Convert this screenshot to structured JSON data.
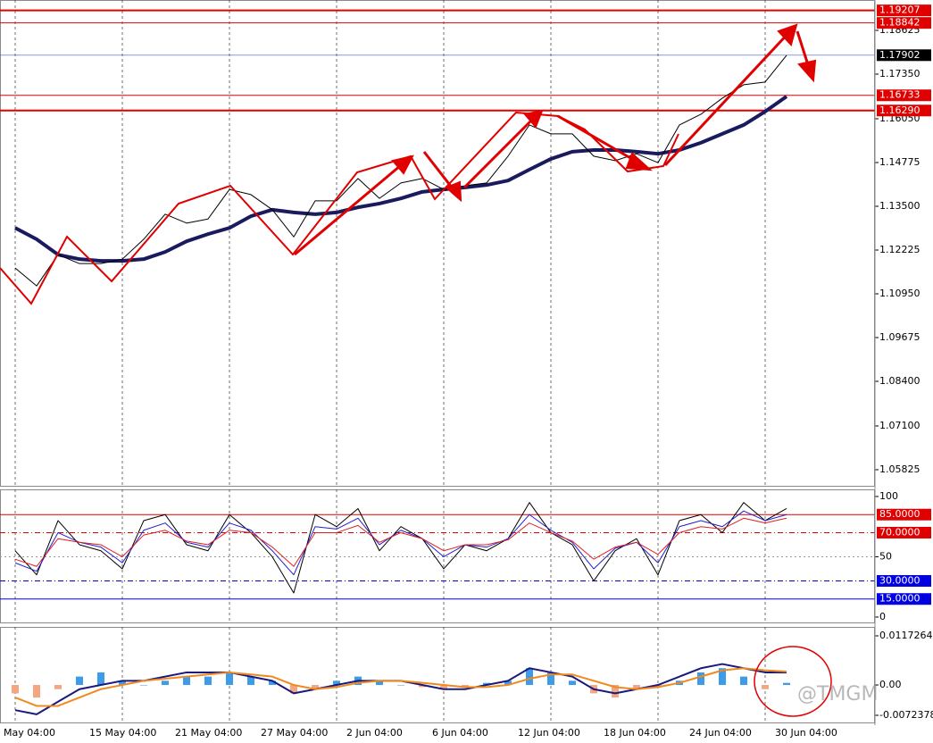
{
  "chart_data": [
    {
      "type": "line",
      "ylim": [
        1.0533,
        1.1951
      ],
      "yticks": [
        1.05825,
        {
          "value": 1.071,
          "label": "1.07100"
        },
        {
          "value": 1.084,
          "label": "1.08400"
        },
        1.09675,
        {
          "value": 1.1095,
          "label": "1.10950"
        },
        1.12225,
        {
          "value": 1.135,
          "label": "1.13500"
        },
        1.14775,
        {
          "value": 1.1605,
          "label": "1.16050"
        },
        {
          "value": 1.1735,
          "label": "1.17350"
        },
        1.18625
      ],
      "levels": [
        {
          "value": 1.19207,
          "color": "#e00000",
          "box_color": "#e00000",
          "width": 2,
          "style": "solid"
        },
        {
          "value": 1.18842,
          "color": "#e00000",
          "box_color": "#e00000",
          "width": 1,
          "style": "solid"
        },
        {
          "value": 1.17902,
          "color": "#4060d0",
          "box_color": "#000000",
          "width": 0.6,
          "style": "solid"
        },
        {
          "value": 1.16733,
          "color": "#e00000",
          "box_color": "#e00000",
          "width": 1,
          "style": "solid"
        },
        {
          "value": 1.1629,
          "label": "1.16290",
          "color": "#e00000",
          "box_color": "#e00000",
          "width": 2,
          "style": "solid"
        }
      ],
      "series": [
        {
          "type": "line",
          "color": "#1a1a5e",
          "width": 4,
          "values": [
            1.1287,
            1.1254,
            1.1209,
            1.1196,
            1.1191,
            1.1191,
            1.1196,
            1.1217,
            1.1248,
            1.1269,
            1.1287,
            1.1321,
            1.134,
            1.1332,
            1.1327,
            1.1332,
            1.1347,
            1.1358,
            1.1373,
            1.1392,
            1.1399,
            1.1405,
            1.1412,
            1.1425,
            1.1457,
            1.1488,
            1.1509,
            1.1514,
            1.1514,
            1.1509,
            1.1503,
            1.1514,
            1.1535,
            1.1561,
            1.1587,
            1.1626,
            1.167
          ]
        },
        {
          "type": "line",
          "color": "#000000",
          "width": 1,
          "values": [
            1.117,
            1.1118,
            1.1209,
            1.1183,
            1.1183,
            1.1196,
            1.1254,
            1.1327,
            1.1301,
            1.1313,
            1.1399,
            1.1384,
            1.134,
            1.1261,
            1.1366,
            1.1366,
            1.1431,
            1.1373,
            1.1418,
            1.1431,
            1.1399,
            1.141,
            1.1418,
            1.1496,
            1.1587,
            1.1561,
            1.1561,
            1.1496,
            1.1483,
            1.1503,
            1.1477,
            1.1587,
            1.1618,
            1.1665,
            1.1704,
            1.1712,
            1.179
          ]
        }
      ]
    },
    {
      "type": "line",
      "ylim": [
        -5.2,
        105.9
      ],
      "yticks": [
        100,
        50,
        0
      ],
      "levels": [
        {
          "value": 85,
          "label": "85.0000",
          "color": "#e00000",
          "box_color": "#e00000",
          "width": 1,
          "style": "solid"
        },
        {
          "value": 70,
          "label": "70.0000",
          "color": "#e00000",
          "box_color": "#e00000",
          "width": 1,
          "style": "dashdot"
        },
        {
          "value": 50,
          "color": "#999999",
          "width": 1,
          "style": "dotted"
        },
        {
          "value": 30,
          "label": "30.0000",
          "color": "#0000d0",
          "box_color": "#0000e0",
          "width": 1,
          "style": "dashdot"
        },
        {
          "value": 15,
          "label": "15.0000",
          "color": "#0000d0",
          "box_color": "#0000e0",
          "width": 1,
          "style": "solid"
        }
      ],
      "series": [
        {
          "type": "line",
          "color": "#000000",
          "width": 1,
          "values": [
            55,
            35,
            80,
            60,
            55,
            40,
            80,
            85,
            60,
            55,
            85,
            70,
            50,
            20,
            85,
            75,
            90,
            55,
            75,
            65,
            40,
            60,
            55,
            65,
            95,
            70,
            60,
            30,
            55,
            65,
            35,
            80,
            85,
            70,
            95,
            80,
            90
          ]
        },
        {
          "type": "line",
          "color": "#2020d0",
          "width": 1,
          "values": [
            45,
            38,
            70,
            62,
            58,
            45,
            72,
            78,
            62,
            58,
            78,
            72,
            55,
            35,
            75,
            73,
            82,
            60,
            72,
            65,
            50,
            60,
            58,
            65,
            85,
            72,
            62,
            40,
            57,
            62,
            45,
            75,
            80,
            75,
            88,
            80,
            85
          ]
        },
        {
          "type": "line",
          "color": "#e02020",
          "width": 1,
          "values": [
            48,
            42,
            65,
            62,
            60,
            50,
            68,
            72,
            63,
            60,
            72,
            70,
            58,
            42,
            70,
            70,
            76,
            62,
            70,
            65,
            55,
            60,
            60,
            64,
            78,
            70,
            63,
            48,
            58,
            62,
            52,
            70,
            75,
            73,
            82,
            78,
            82
          ]
        }
      ]
    },
    {
      "type": "combo",
      "ylim": [
        -0.00916,
        0.01386
      ],
      "yticks": [
        0.0117264,
        {
          "value": 0,
          "label": "0.00"
        },
        -0.0072378
      ],
      "categories": [
        "May 04:00",
        null,
        null,
        null,
        "15 May 04:00",
        null,
        null,
        null,
        "21 May 04:00",
        null,
        null,
        null,
        "27 May 04:00",
        null,
        null,
        null,
        "2 Jun 04:00",
        null,
        null,
        null,
        "6 Jun 04:00",
        null,
        null,
        null,
        "12 Jun 04:00",
        null,
        null,
        null,
        "18 Jun 04:00",
        null,
        null,
        null,
        "24 Jun 04:00",
        null,
        null,
        null,
        "30 Jun 04:00"
      ],
      "series": [
        {
          "type": "bar",
          "color": "#3d9be9",
          "negative_color": "#f4a582",
          "values": [
            -0.002,
            -0.003,
            -0.001,
            0.002,
            0.003,
            0.001,
            0,
            0.001,
            0.002,
            0.002,
            0.003,
            0.002,
            0.001,
            -0.002,
            -0.001,
            0.001,
            0.002,
            0.001,
            0,
            -0.0005,
            -0.001,
            -0.0005,
            0.0005,
            0.001,
            0.004,
            0.003,
            0.001,
            -0.002,
            -0.003,
            -0.001,
            -0.0005,
            0.001,
            0.003,
            0.004,
            0.002,
            -0.001,
            0.0005
          ]
        },
        {
          "type": "line",
          "color": "#1a1a7e",
          "width": 2,
          "values": [
            -0.006,
            -0.007,
            -0.004,
            -0.001,
            0,
            0.001,
            0.001,
            0.002,
            0.003,
            0.003,
            0.003,
            0.002,
            0.001,
            -0.002,
            -0.001,
            0,
            0.001,
            0.001,
            0.001,
            0,
            -0.001,
            -0.001,
            0,
            0.001,
            0.004,
            0.003,
            0.002,
            -0.001,
            -0.002,
            -0.001,
            0,
            0.002,
            0.004,
            0.005,
            0.004,
            0.003,
            0.003
          ]
        },
        {
          "type": "line",
          "color": "#f08a20",
          "width": 2,
          "values": [
            -0.003,
            -0.005,
            -0.005,
            -0.003,
            -0.001,
            0,
            0.001,
            0.0015,
            0.002,
            0.0025,
            0.003,
            0.0025,
            0.002,
            0,
            -0.001,
            -0.0005,
            0.0005,
            0.001,
            0.001,
            0.0005,
            0,
            -0.0005,
            -0.0005,
            0,
            0.0015,
            0.0025,
            0.0025,
            0.001,
            -0.0005,
            -0.001,
            -0.0005,
            0.0005,
            0.002,
            0.0035,
            0.004,
            0.0035,
            0.0032
          ]
        }
      ]
    }
  ],
  "watermark": "@TMGM"
}
